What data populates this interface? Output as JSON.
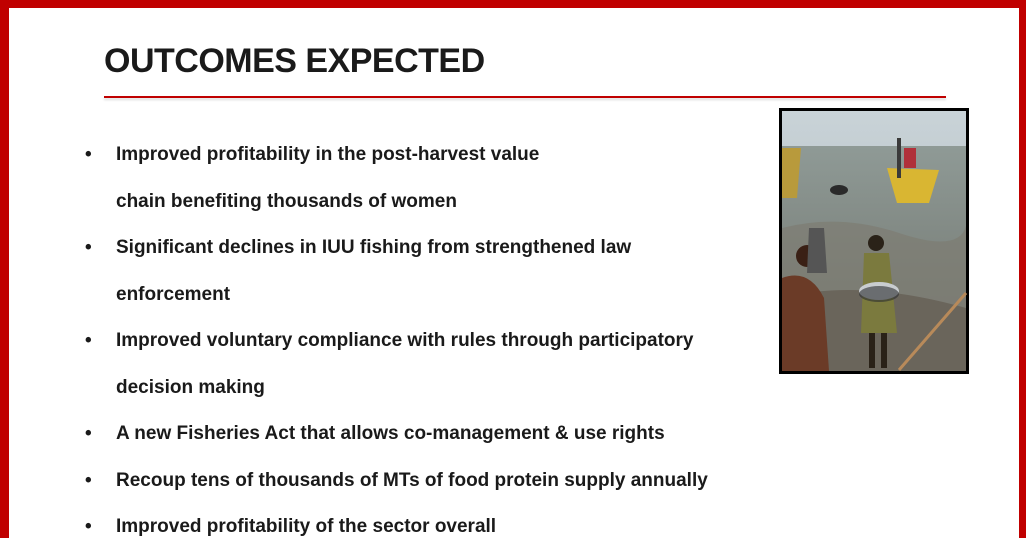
{
  "title": "OUTCOMES EXPECTED",
  "bullets": [
    {
      "lines": [
        "Improved profitability in the post-harvest value",
        "chain benefiting thousands of women"
      ]
    },
    {
      "lines": [
        "Significant declines in IUU fishing from strengthened law",
        "enforcement"
      ]
    },
    {
      "lines": [
        "Improved voluntary compliance with rules through participatory",
        "decision making"
      ]
    },
    {
      "lines": [
        "A new Fisheries Act that allows co-management & use rights"
      ]
    },
    {
      "lines": [
        "Recoup tens of thousands of MTs of food protein supply annually"
      ]
    },
    {
      "lines": [
        "Improved profitability of the sector overall"
      ]
    }
  ]
}
